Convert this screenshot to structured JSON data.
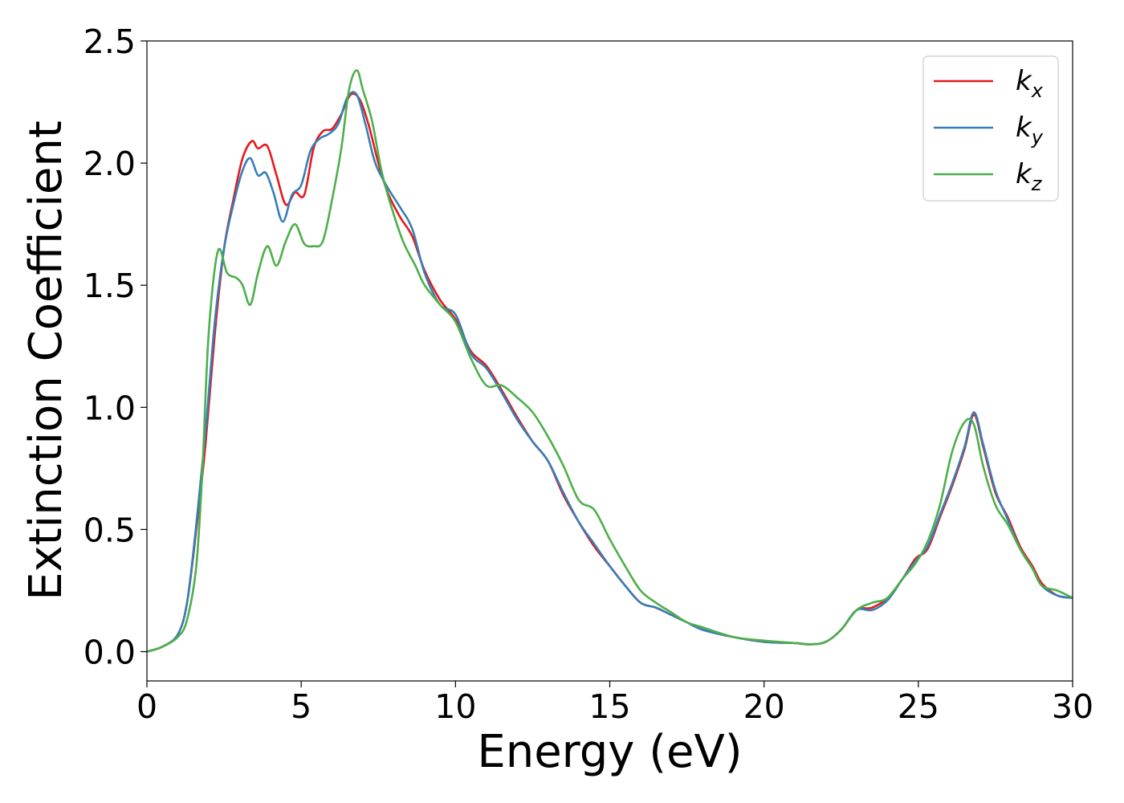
{
  "chart_data": {
    "type": "line",
    "title": "",
    "xlabel": "Energy (eV)",
    "ylabel": "Extinction Coefficient",
    "xlim": [
      0,
      30
    ],
    "ylim": [
      -0.12,
      2.5
    ],
    "xticks": [
      "0",
      "5",
      "10",
      "15",
      "20",
      "25",
      "30"
    ],
    "yticks": [
      "0.0",
      "0.5",
      "1.0",
      "1.5",
      "2.0",
      "2.5"
    ],
    "grid": false,
    "legend_position": "top-right",
    "series": [
      {
        "name": "k_x",
        "label_base": "k",
        "label_sub": "x",
        "color": "#e41a1c",
        "x": [
          0,
          0.5,
          1.0,
          1.3,
          1.6,
          1.9,
          2.2,
          2.5,
          2.8,
          3.1,
          3.4,
          3.6,
          3.9,
          4.2,
          4.5,
          4.8,
          5.1,
          5.4,
          5.7,
          6.0,
          6.3,
          6.6,
          6.9,
          7.2,
          7.5,
          7.8,
          8.2,
          8.6,
          9.0,
          9.5,
          10.0,
          10.5,
          11.0,
          11.5,
          12.0,
          12.5,
          13.0,
          13.5,
          14.0,
          14.5,
          15.0,
          15.5,
          16.0,
          16.5,
          17.0,
          17.5,
          18.0,
          19.0,
          20.0,
          21.0,
          21.5,
          22.0,
          22.5,
          23.0,
          23.5,
          24.0,
          24.5,
          24.9,
          25.3,
          25.7,
          26.1,
          26.5,
          26.8,
          27.1,
          27.5,
          27.9,
          28.3,
          28.7,
          29.0,
          29.5,
          30.0
        ],
        "y": [
          0.0,
          0.02,
          0.07,
          0.2,
          0.5,
          0.85,
          1.3,
          1.65,
          1.85,
          2.02,
          2.09,
          2.06,
          2.07,
          1.95,
          1.83,
          1.88,
          1.87,
          2.06,
          2.13,
          2.14,
          2.2,
          2.28,
          2.26,
          2.15,
          2.0,
          1.88,
          1.78,
          1.7,
          1.56,
          1.44,
          1.36,
          1.23,
          1.17,
          1.07,
          0.96,
          0.86,
          0.78,
          0.64,
          0.53,
          0.43,
          0.35,
          0.27,
          0.2,
          0.18,
          0.15,
          0.12,
          0.09,
          0.06,
          0.04,
          0.035,
          0.03,
          0.04,
          0.09,
          0.17,
          0.18,
          0.22,
          0.3,
          0.38,
          0.42,
          0.55,
          0.68,
          0.83,
          0.97,
          0.84,
          0.65,
          0.55,
          0.43,
          0.35,
          0.28,
          0.23,
          0.22
        ]
      },
      {
        "name": "k_y",
        "label_base": "k",
        "label_sub": "y",
        "color": "#377eb8",
        "x": [
          0,
          0.5,
          1.0,
          1.3,
          1.6,
          1.9,
          2.2,
          2.5,
          2.8,
          3.1,
          3.35,
          3.6,
          3.85,
          4.1,
          4.4,
          4.7,
          5.0,
          5.3,
          5.6,
          5.9,
          6.2,
          6.5,
          6.8,
          7.1,
          7.4,
          7.8,
          8.2,
          8.6,
          9.0,
          9.5,
          10.0,
          10.5,
          11.0,
          11.5,
          12.0,
          12.5,
          13.0,
          13.5,
          14.0,
          14.5,
          15.0,
          15.5,
          16.0,
          16.5,
          17.0,
          17.5,
          18.0,
          19.0,
          20.0,
          21.0,
          21.5,
          22.0,
          22.5,
          23.0,
          23.5,
          24.0,
          24.5,
          24.9,
          25.3,
          25.7,
          26.1,
          26.5,
          26.8,
          27.1,
          27.5,
          27.9,
          28.3,
          28.7,
          29.0,
          29.5,
          30.0
        ],
        "y": [
          0.0,
          0.02,
          0.07,
          0.2,
          0.52,
          0.9,
          1.35,
          1.65,
          1.83,
          1.97,
          2.02,
          1.95,
          1.96,
          1.88,
          1.76,
          1.87,
          1.91,
          2.05,
          2.1,
          2.12,
          2.16,
          2.27,
          2.28,
          2.15,
          2.0,
          1.9,
          1.82,
          1.73,
          1.55,
          1.42,
          1.38,
          1.22,
          1.16,
          1.06,
          0.95,
          0.86,
          0.78,
          0.65,
          0.53,
          0.44,
          0.35,
          0.27,
          0.2,
          0.18,
          0.15,
          0.12,
          0.09,
          0.06,
          0.04,
          0.035,
          0.03,
          0.04,
          0.09,
          0.17,
          0.17,
          0.21,
          0.3,
          0.37,
          0.43,
          0.56,
          0.69,
          0.84,
          0.98,
          0.85,
          0.66,
          0.54,
          0.42,
          0.34,
          0.27,
          0.23,
          0.22
        ]
      },
      {
        "name": "k_z",
        "label_base": "k",
        "label_sub": "z",
        "color": "#4daf4a",
        "x": [
          0,
          0.5,
          1.0,
          1.3,
          1.6,
          1.8,
          2.0,
          2.3,
          2.6,
          2.9,
          3.1,
          3.35,
          3.6,
          3.9,
          4.2,
          4.5,
          4.8,
          5.1,
          5.4,
          5.7,
          6.0,
          6.3,
          6.55,
          6.8,
          7.0,
          7.3,
          7.6,
          7.9,
          8.3,
          8.7,
          9.0,
          9.5,
          10.0,
          10.5,
          11.0,
          11.5,
          12.0,
          12.5,
          13.0,
          13.5,
          14.0,
          14.5,
          15.0,
          15.5,
          16.0,
          16.5,
          17.0,
          17.5,
          18.0,
          19.0,
          20.0,
          21.0,
          21.5,
          22.0,
          22.5,
          23.0,
          23.5,
          24.0,
          24.5,
          24.9,
          25.3,
          25.7,
          26.1,
          26.5,
          26.8,
          27.1,
          27.5,
          27.9,
          28.3,
          28.7,
          29.0,
          29.5,
          30.0
        ],
        "y": [
          0.0,
          0.02,
          0.06,
          0.13,
          0.35,
          0.75,
          1.3,
          1.64,
          1.55,
          1.53,
          1.5,
          1.42,
          1.55,
          1.66,
          1.58,
          1.68,
          1.75,
          1.67,
          1.66,
          1.68,
          1.85,
          2.06,
          2.3,
          2.38,
          2.3,
          2.17,
          1.97,
          1.83,
          1.68,
          1.58,
          1.5,
          1.42,
          1.35,
          1.2,
          1.09,
          1.09,
          1.04,
          0.98,
          0.88,
          0.76,
          0.62,
          0.58,
          0.46,
          0.35,
          0.25,
          0.2,
          0.16,
          0.12,
          0.1,
          0.06,
          0.045,
          0.035,
          0.03,
          0.04,
          0.09,
          0.17,
          0.2,
          0.22,
          0.3,
          0.36,
          0.45,
          0.6,
          0.82,
          0.94,
          0.93,
          0.76,
          0.6,
          0.52,
          0.42,
          0.34,
          0.27,
          0.25,
          0.22
        ]
      }
    ]
  }
}
